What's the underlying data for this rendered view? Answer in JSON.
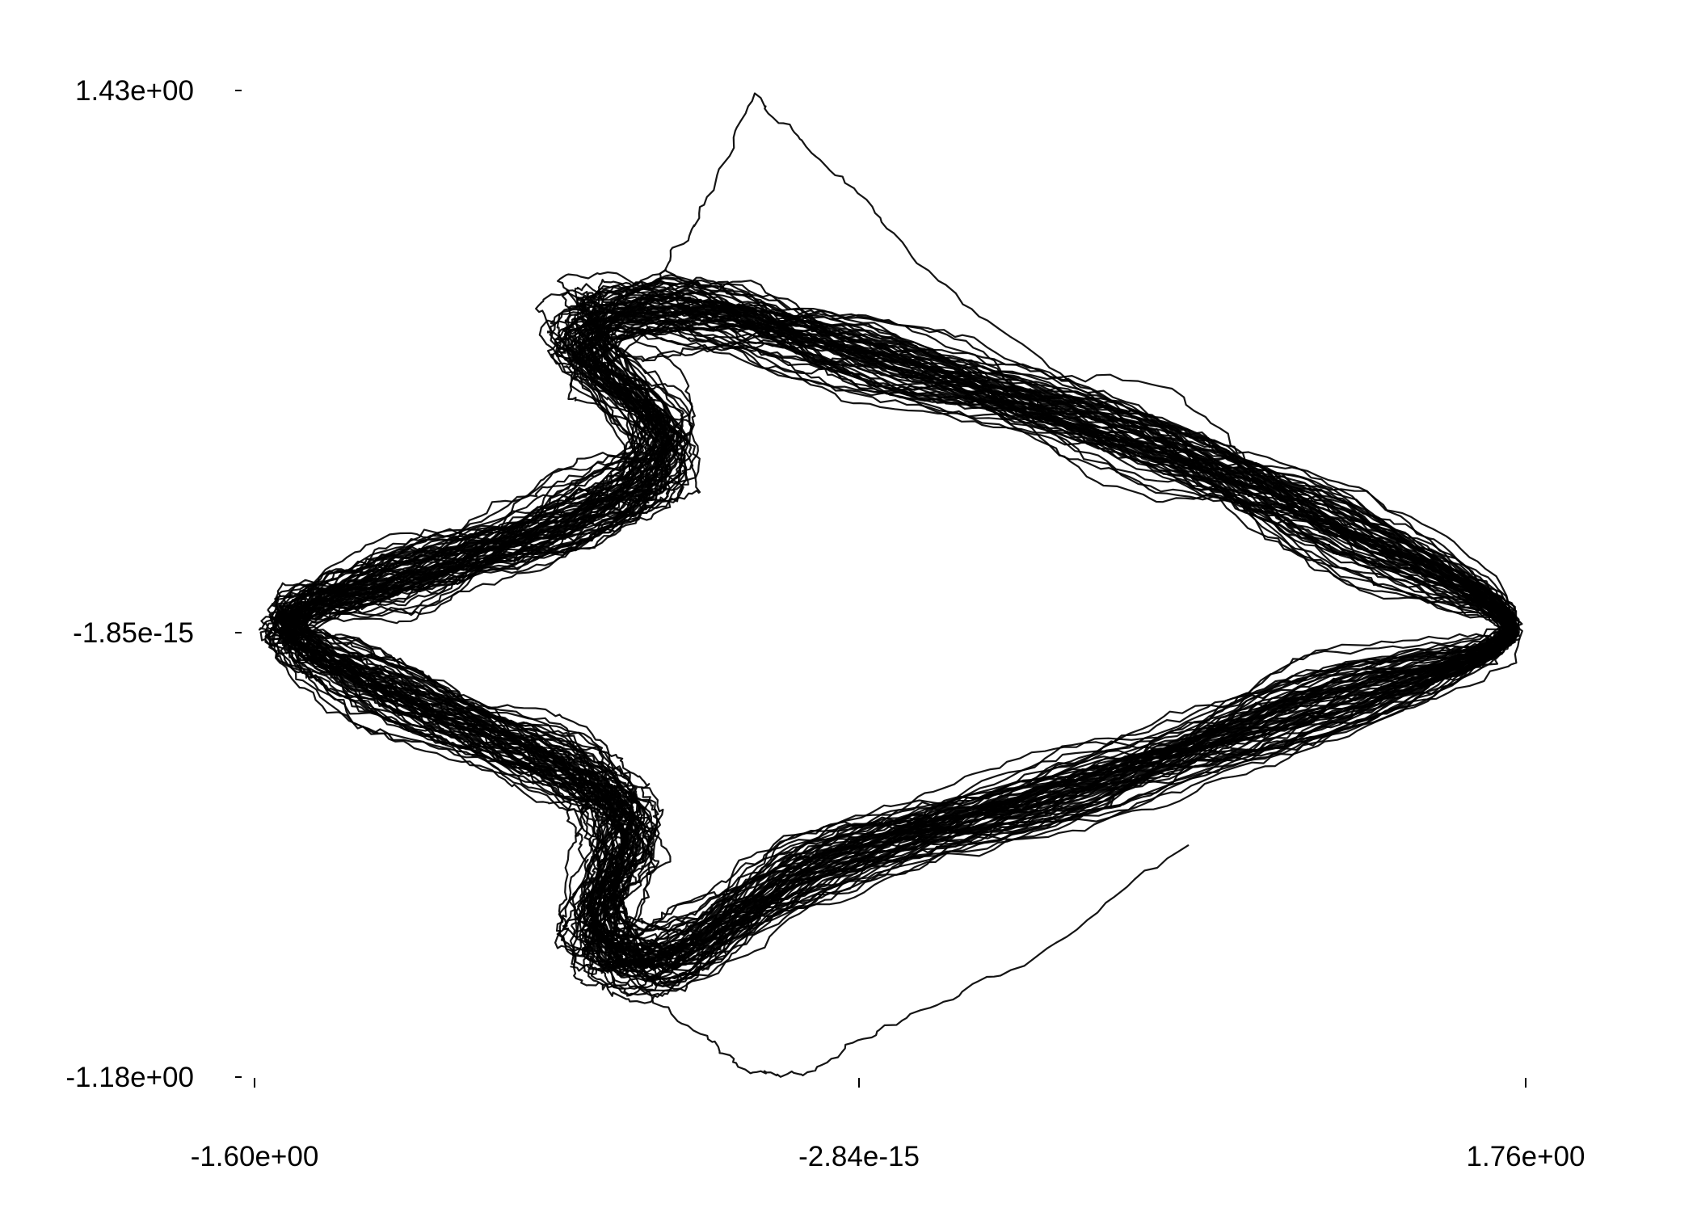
{
  "chart_data": {
    "type": "line",
    "title": "",
    "xlabel": "",
    "ylabel": "",
    "xlim": [
      -1.6,
      1.76
    ],
    "ylim": [
      -1.18,
      1.43
    ],
    "x_ticks": [
      {
        "value": -1.6,
        "label": "-1.60e+00"
      },
      {
        "value": -2.84e-15,
        "label": "-2.84e-15"
      },
      {
        "value": 1.76,
        "label": "1.76e+00"
      }
    ],
    "y_ticks": [
      {
        "value": 1.43,
        "label": "1.43e+00"
      },
      {
        "value": -1.85e-15,
        "label": "-1.85e-15"
      },
      {
        "value": -1.18,
        "label": "-1.18e+00"
      }
    ],
    "grid": false,
    "legend": "none",
    "series_color": "#000000",
    "description_of_shape": "noisy closed orbit: left vertex near (-1.52, 0.03), right vertex near (1.72, 0.01), upper bundle peaking near (-0.55, 0.88), lower bundle bottoming near (-0.65, -0.88)",
    "key_points": {
      "left_vertex": [
        -1.52,
        0.03
      ],
      "right_vertex": [
        1.72,
        0.01
      ],
      "upper_bulge": [
        -0.55,
        0.88
      ],
      "lower_bulge": [
        -0.65,
        -0.88
      ],
      "top_excursion": [
        -0.28,
        1.42
      ],
      "bottom_excursion": [
        -0.15,
        -1.18
      ]
    }
  }
}
